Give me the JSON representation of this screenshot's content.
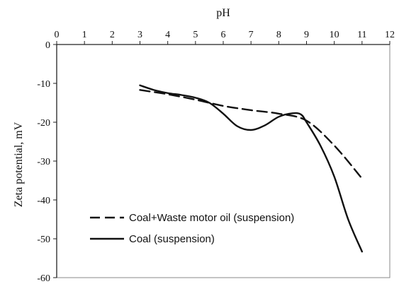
{
  "chart_data": {
    "type": "line",
    "title": "",
    "xlabel": "pH",
    "ylabel": "Zeta potential, mV",
    "xlim": [
      0,
      12
    ],
    "ylim": [
      -60,
      0
    ],
    "x_axis_position": "top",
    "x_ticks": [
      0,
      1,
      2,
      3,
      4,
      5,
      6,
      7,
      8,
      9,
      10,
      11,
      12
    ],
    "y_ticks": [
      0,
      -10,
      -20,
      -30,
      -40,
      -50,
      -60
    ],
    "grid": false,
    "legend_position": "bottom-left",
    "series": [
      {
        "name": "Coal+Waste motor oil (suspension)",
        "style": "dashed",
        "color": "#111111",
        "x": [
          3,
          4,
          5,
          6,
          7,
          8,
          9,
          10,
          11
        ],
        "y": [
          -11.7,
          -12.8,
          -14.2,
          -15.8,
          -16.9,
          -17.8,
          -19.6,
          -26.0,
          -34.5
        ]
      },
      {
        "name": "Coal (suspension)",
        "style": "solid",
        "color": "#111111",
        "x": [
          3,
          3.5,
          4,
          4.5,
          5,
          5.5,
          6,
          6.5,
          7,
          7.5,
          8,
          8.5,
          8.8,
          9,
          9.5,
          10,
          10.5,
          11
        ],
        "y": [
          -10.5,
          -11.7,
          -12.5,
          -13.0,
          -13.7,
          -15.0,
          -17.8,
          -21.0,
          -22.0,
          -20.8,
          -18.6,
          -17.7,
          -18.0,
          -20.0,
          -26.0,
          -34.0,
          -45.0,
          -53.3
        ]
      }
    ]
  }
}
